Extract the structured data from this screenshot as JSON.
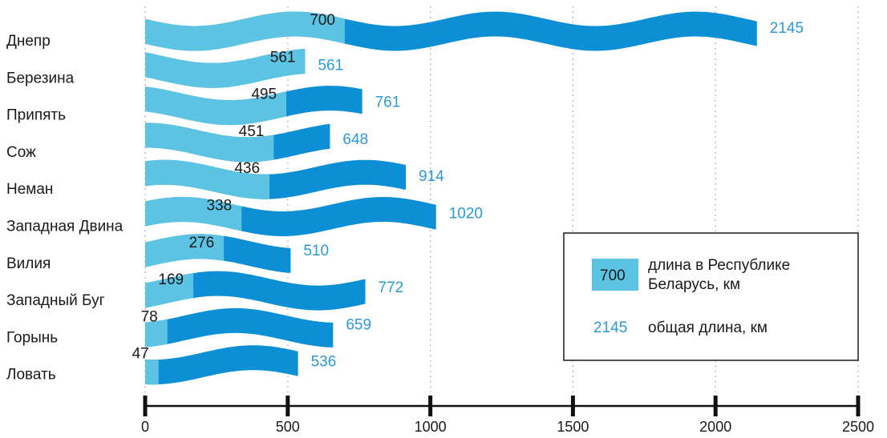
{
  "chart_data": {
    "type": "bar",
    "categories": [
      "Днепр",
      "Березина",
      "Припять",
      "Сож",
      "Неман",
      "Западная Двина",
      "Вилия",
      "Западный Буг",
      "Горынь",
      "Ловать"
    ],
    "series": [
      {
        "name": "длина в Республике Беларусь, км",
        "values": [
          700,
          561,
          495,
          451,
          436,
          338,
          276,
          169,
          78,
          47
        ]
      },
      {
        "name": "общая длина, км",
        "values": [
          2145,
          561,
          761,
          648,
          914,
          1020,
          510,
          772,
          659,
          536
        ]
      }
    ],
    "x_ticks": [
      0,
      500,
      1000,
      1500,
      2000,
      2500
    ],
    "xlim": [
      0,
      2500
    ],
    "grid": "vertical dotted",
    "colors": {
      "belarus": "#5cc3e3",
      "total": "#0c8fd4",
      "total_label": "#2a9ad6"
    },
    "legend": {
      "position": "bottom-right",
      "sample_inner": "700",
      "inner_text_line1": "длина в Республике",
      "inner_text_line2": "Беларусь, км",
      "sample_total": "2145",
      "total_text": "общая длина, км"
    }
  }
}
